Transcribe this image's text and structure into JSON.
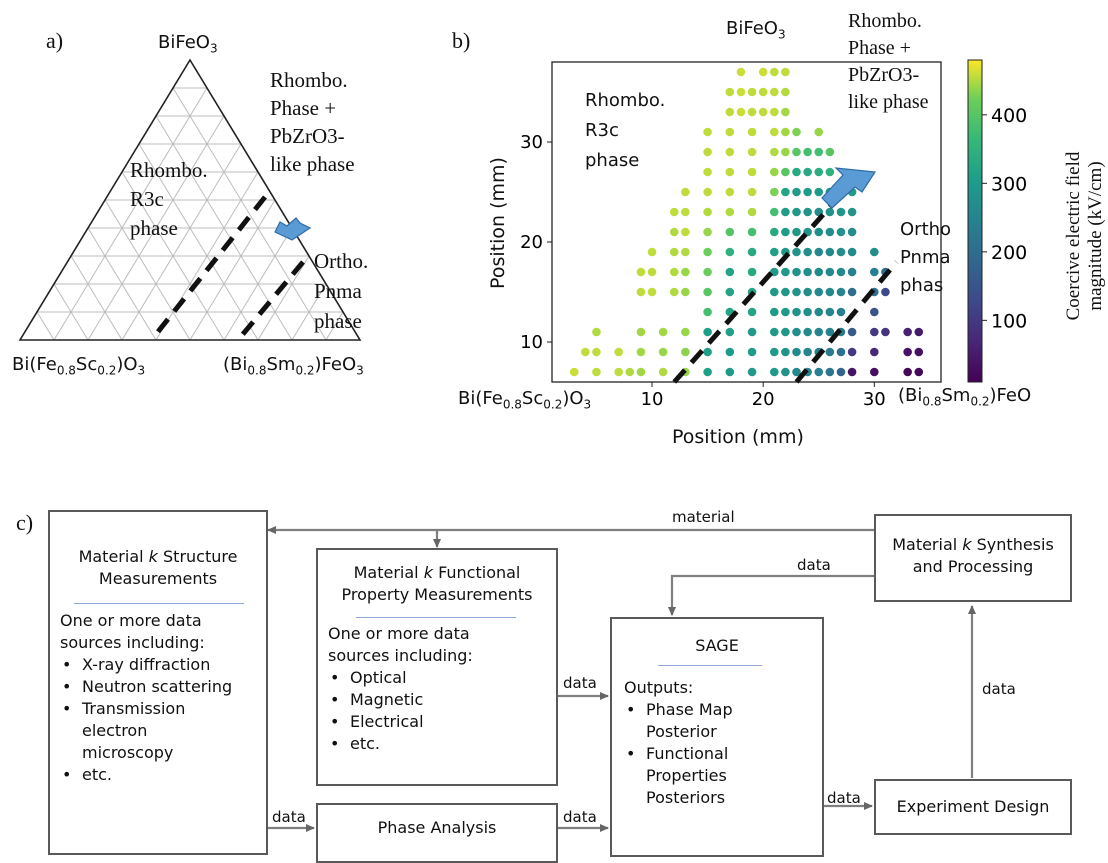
{
  "panel_a": {
    "label": "a)",
    "top_vertex": "BiFeO",
    "top_vertex_sub": "3",
    "left_vertex_parts": [
      "Bi(Fe",
      "0.8",
      "Sc",
      "0.2",
      ")O",
      "3"
    ],
    "right_vertex_parts": [
      "(Bi",
      "0.8",
      "Sm",
      "0.2",
      ")FeO",
      "3"
    ],
    "rhombo_pz_lines": [
      "Rhombo.",
      "Phase +",
      "PbZrO3-",
      "like phase"
    ],
    "rhombo_r3c_lines": [
      "Rhombo.",
      "R3c",
      "phase"
    ],
    "ortho_lines": [
      "Ortho.",
      "Pnma",
      "phase"
    ]
  },
  "panel_b": {
    "label": "b)",
    "top_label": "BiFeO",
    "top_label_sub": "3",
    "rhombo_pz_lines": [
      "Rhombo.",
      "Phase +",
      "PbZrO3-",
      "like phase"
    ],
    "rhombo_r3c_lines": [
      "Rhombo.",
      "R3c",
      "phase"
    ],
    "ortho_lines": [
      "Ortho",
      "Pnma",
      "phas"
    ],
    "left_corner_parts": [
      "Bi(Fe",
      "0.8",
      "Sc",
      "0.2",
      ")O",
      "3"
    ],
    "right_corner_parts": [
      "(Bi",
      "0.8",
      "Sm",
      "0.2",
      ")FeO"
    ],
    "colorbar_label_lines": [
      "Coercive electric field",
      "magnitude (kV/cm)"
    ],
    "colorbar_ticks": [
      "100",
      "200",
      "300",
      "400"
    ],
    "colors": {
      "low": "#440154",
      "mid": "#21918c",
      "high": "#fde725"
    }
  },
  "chart_data": {
    "type": "scatter",
    "xlabel": "Position (mm)",
    "ylabel": "Position (mm)",
    "xlim": [
      1,
      36
    ],
    "ylim": [
      6,
      38
    ],
    "xticks": [
      "10",
      "20",
      "30"
    ],
    "yticks": [
      "10",
      "20",
      "30"
    ],
    "colorbar": {
      "label": "Coercive electric field magnitude (kV/cm)",
      "range": [
        10,
        480
      ],
      "ticks": [
        100,
        200,
        300,
        400
      ],
      "colormap": "viridis"
    },
    "grid": false,
    "points": [
      [
        3,
        7,
        460
      ],
      [
        4,
        9,
        455
      ],
      [
        5,
        7,
        455
      ],
      [
        5,
        9,
        455
      ],
      [
        5,
        11,
        450
      ],
      [
        7,
        7,
        455
      ],
      [
        7,
        9,
        455
      ],
      [
        8,
        7,
        450
      ],
      [
        9,
        7,
        445
      ],
      [
        9,
        9,
        445
      ],
      [
        9,
        11,
        445
      ],
      [
        9,
        15,
        455
      ],
      [
        9,
        17,
        455
      ],
      [
        10,
        15,
        455
      ],
      [
        10,
        17,
        455
      ],
      [
        10,
        19,
        455
      ],
      [
        11,
        7,
        450
      ],
      [
        11,
        9,
        440
      ],
      [
        11,
        11,
        445
      ],
      [
        12,
        15,
        450
      ],
      [
        12,
        17,
        450
      ],
      [
        12,
        19,
        450
      ],
      [
        12,
        21,
        450
      ],
      [
        12,
        23,
        455
      ],
      [
        13,
        7,
        440
      ],
      [
        13,
        9,
        435
      ],
      [
        13,
        11,
        440
      ],
      [
        13,
        15,
        440
      ],
      [
        13,
        17,
        440
      ],
      [
        13,
        19,
        450
      ],
      [
        13,
        21,
        455
      ],
      [
        13,
        23,
        455
      ],
      [
        13,
        25,
        455
      ],
      [
        15,
        7,
        310
      ],
      [
        15,
        9,
        310
      ],
      [
        15,
        11,
        310
      ],
      [
        15,
        13,
        380
      ],
      [
        15,
        15,
        400
      ],
      [
        15,
        17,
        420
      ],
      [
        15,
        19,
        420
      ],
      [
        15,
        21,
        440
      ],
      [
        15,
        23,
        450
      ],
      [
        15,
        25,
        455
      ],
      [
        15,
        27,
        455
      ],
      [
        15,
        29,
        455
      ],
      [
        15,
        31,
        455
      ],
      [
        17,
        7,
        300
      ],
      [
        17,
        9,
        300
      ],
      [
        17,
        11,
        310
      ],
      [
        17,
        13,
        320
      ],
      [
        17,
        15,
        320
      ],
      [
        17,
        17,
        320
      ],
      [
        17,
        19,
        350
      ],
      [
        17,
        21,
        400
      ],
      [
        17,
        23,
        450
      ],
      [
        17,
        25,
        455
      ],
      [
        17,
        27,
        455
      ],
      [
        17,
        29,
        455
      ],
      [
        17,
        31,
        455
      ],
      [
        17,
        33,
        455
      ],
      [
        17,
        35,
        455
      ],
      [
        18,
        37,
        460
      ],
      [
        18,
        35,
        460
      ],
      [
        18,
        33,
        460
      ],
      [
        19,
        7,
        300
      ],
      [
        19,
        9,
        300
      ],
      [
        19,
        11,
        300
      ],
      [
        19,
        13,
        320
      ],
      [
        19,
        15,
        320
      ],
      [
        19,
        17,
        330
      ],
      [
        19,
        19,
        330
      ],
      [
        19,
        21,
        380
      ],
      [
        19,
        23,
        450
      ],
      [
        19,
        25,
        455
      ],
      [
        19,
        27,
        455
      ],
      [
        19,
        29,
        455
      ],
      [
        19,
        31,
        455
      ],
      [
        19,
        33,
        455
      ],
      [
        19,
        35,
        455
      ],
      [
        20,
        37,
        460
      ],
      [
        20,
        35,
        455
      ],
      [
        20,
        33,
        455
      ],
      [
        21,
        7,
        300
      ],
      [
        21,
        9,
        300
      ],
      [
        21,
        11,
        300
      ],
      [
        21,
        13,
        300
      ],
      [
        21,
        15,
        300
      ],
      [
        21,
        17,
        300
      ],
      [
        21,
        19,
        310
      ],
      [
        21,
        21,
        330
      ],
      [
        21,
        23,
        380
      ],
      [
        21,
        25,
        430
      ],
      [
        21,
        27,
        440
      ],
      [
        21,
        29,
        450
      ],
      [
        21,
        31,
        455
      ],
      [
        21,
        33,
        455
      ],
      [
        21,
        35,
        455
      ],
      [
        21,
        37,
        455
      ],
      [
        22,
        7,
        280
      ],
      [
        22,
        9,
        280
      ],
      [
        22,
        11,
        290
      ],
      [
        22,
        13,
        290
      ],
      [
        22,
        15,
        290
      ],
      [
        22,
        17,
        290
      ],
      [
        22,
        19,
        290
      ],
      [
        22,
        21,
        300
      ],
      [
        22,
        23,
        300
      ],
      [
        22,
        25,
        320
      ],
      [
        22,
        27,
        400
      ],
      [
        22,
        29,
        440
      ],
      [
        22,
        31,
        445
      ],
      [
        22,
        33,
        445
      ],
      [
        22,
        35,
        450
      ],
      [
        22,
        37,
        455
      ],
      [
        23,
        7,
        260
      ],
      [
        23,
        9,
        260
      ],
      [
        23,
        11,
        270
      ],
      [
        23,
        13,
        280
      ],
      [
        23,
        15,
        280
      ],
      [
        23,
        17,
        280
      ],
      [
        23,
        19,
        280
      ],
      [
        23,
        21,
        290
      ],
      [
        23,
        23,
        290
      ],
      [
        23,
        25,
        300
      ],
      [
        23,
        27,
        330
      ],
      [
        23,
        29,
        400
      ],
      [
        23,
        31,
        430
      ],
      [
        24,
        7,
        250
      ],
      [
        24,
        9,
        250
      ],
      [
        24,
        11,
        260
      ],
      [
        24,
        13,
        270
      ],
      [
        24,
        15,
        270
      ],
      [
        24,
        17,
        270
      ],
      [
        24,
        19,
        270
      ],
      [
        24,
        21,
        280
      ],
      [
        24,
        23,
        280
      ],
      [
        24,
        25,
        300
      ],
      [
        24,
        27,
        330
      ],
      [
        24,
        29,
        380
      ],
      [
        25,
        7,
        240
      ],
      [
        25,
        9,
        240
      ],
      [
        25,
        11,
        250
      ],
      [
        25,
        13,
        260
      ],
      [
        25,
        15,
        260
      ],
      [
        25,
        17,
        260
      ],
      [
        25,
        19,
        260
      ],
      [
        25,
        21,
        270
      ],
      [
        25,
        23,
        270
      ],
      [
        25,
        25,
        300
      ],
      [
        25,
        27,
        340
      ],
      [
        25,
        29,
        380
      ],
      [
        25,
        31,
        440
      ],
      [
        26,
        7,
        220
      ],
      [
        26,
        9,
        230
      ],
      [
        26,
        11,
        240
      ],
      [
        26,
        13,
        250
      ],
      [
        26,
        15,
        260
      ],
      [
        26,
        17,
        260
      ],
      [
        26,
        19,
        260
      ],
      [
        26,
        21,
        270
      ],
      [
        26,
        23,
        280
      ],
      [
        26,
        25,
        300
      ],
      [
        26,
        27,
        350
      ],
      [
        26,
        29,
        400
      ],
      [
        27,
        7,
        180
      ],
      [
        27,
        9,
        200
      ],
      [
        27,
        11,
        220
      ],
      [
        27,
        13,
        240
      ],
      [
        27,
        15,
        250
      ],
      [
        27,
        17,
        260
      ],
      [
        27,
        19,
        270
      ],
      [
        27,
        21,
        280
      ],
      [
        27,
        23,
        290
      ],
      [
        27,
        25,
        330
      ],
      [
        28,
        7,
        40
      ],
      [
        28,
        9,
        100
      ],
      [
        28,
        11,
        160
      ],
      [
        28,
        15,
        200
      ],
      [
        28,
        17,
        240
      ],
      [
        28,
        19,
        260
      ],
      [
        28,
        21,
        270
      ],
      [
        28,
        23,
        280
      ],
      [
        28,
        25,
        300
      ],
      [
        30,
        7,
        30
      ],
      [
        30,
        9,
        70
      ],
      [
        30,
        11,
        100
      ],
      [
        30,
        13,
        150
      ],
      [
        30,
        15,
        200
      ],
      [
        30,
        17,
        240
      ],
      [
        30,
        19,
        270
      ],
      [
        31,
        11,
        90
      ],
      [
        31,
        15,
        130
      ],
      [
        31,
        17,
        200
      ],
      [
        33,
        7,
        20
      ],
      [
        33,
        9,
        40
      ],
      [
        33,
        11,
        60
      ],
      [
        34,
        7,
        20
      ],
      [
        34,
        9,
        35
      ],
      [
        34,
        11,
        50
      ]
    ],
    "dashed_lines": [
      {
        "from": [
          12,
          6
        ],
        "to": [
          28,
          26
        ]
      },
      {
        "from": [
          23,
          6
        ],
        "to": [
          32,
          18
        ]
      }
    ]
  },
  "panel_c": {
    "label": "c)",
    "structure_box": {
      "title_pre": "Material ",
      "title_k": "k",
      "title_post": " Structure",
      "title_line2": "Measurements",
      "intro_lines": [
        "One or more data",
        "sources including:"
      ],
      "items": [
        "X-ray diffraction",
        "Neutron scattering",
        "Transmission electron microscopy",
        "etc."
      ]
    },
    "functional_box": {
      "title_pre": "Material ",
      "title_k": "k",
      "title_post": " Functional",
      "title_line2": "Property Measurements",
      "intro_lines": [
        "One or more data",
        "sources including:"
      ],
      "items": [
        "Optical",
        "Magnetic",
        "Electrical",
        "etc."
      ]
    },
    "sage_box": {
      "title": "SAGE",
      "outputs_label": "Outputs:",
      "items": [
        "Phase Map Posterior",
        "Functional Properties Posteriors"
      ]
    },
    "synthesis_box": {
      "title_pre": "Material ",
      "title_k": "k",
      "title_post": " Synthesis",
      "title_line2": "and Processing"
    },
    "experiment_box": {
      "title": "Experiment Design"
    },
    "phase_box": {
      "title": "Phase Analysis"
    },
    "edge_labels": {
      "material": "material",
      "data_synth_sage": "data",
      "data_func_sage": "data",
      "data_struct_phase": "data",
      "data_phase_sage": "data",
      "data_sage_exp": "data",
      "data_exp_synth": "data"
    }
  }
}
